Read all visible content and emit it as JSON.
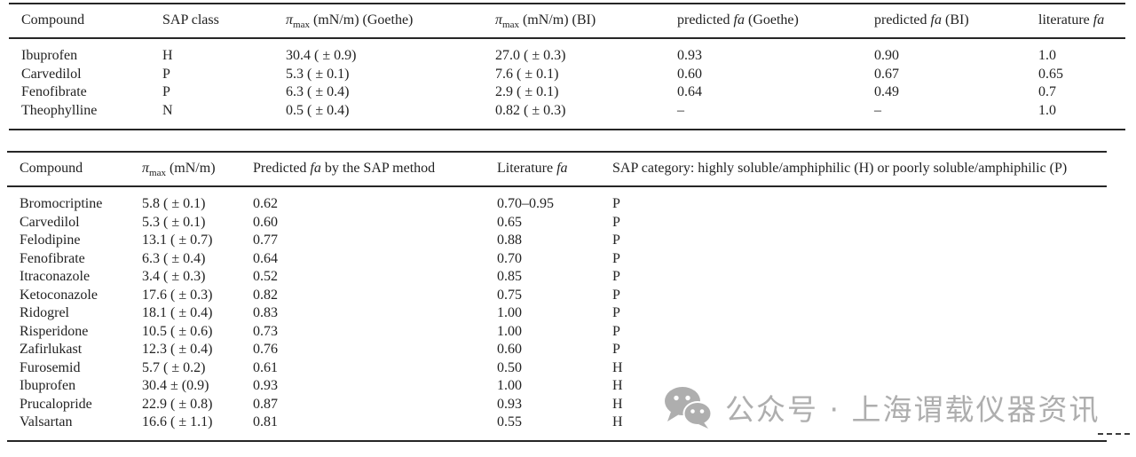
{
  "page": {
    "background": "#ffffff",
    "text_color": "#222222",
    "rule_color": "#262626"
  },
  "table1": {
    "headers": [
      {
        "pre": "Compound"
      },
      {
        "pre": "SAP class"
      },
      {
        "pi": "π",
        "sub": "max",
        "post": " (mN/m) (Goethe)"
      },
      {
        "pi": "π",
        "sub": "max",
        "post": " (mN/m) (BI)"
      },
      {
        "pre": "predicted ",
        "it": "fa",
        "post": " (Goethe)"
      },
      {
        "pre": "predicted ",
        "it": "fa",
        "post": " (BI)"
      },
      {
        "pre": "literature ",
        "it": "fa"
      }
    ],
    "rows": [
      [
        "Ibuprofen",
        "H",
        "30.4 ( ± 0.9)",
        "27.0 ( ± 0.3)",
        "0.93",
        "0.90",
        "1.0"
      ],
      [
        "Carvedilol",
        "P",
        "5.3 ( ± 0.1)",
        "7.6 ( ± 0.1)",
        "0.60",
        "0.67",
        "0.65"
      ],
      [
        "Fenofibrate",
        "P",
        "6.3 ( ± 0.4)",
        "2.9 ( ± 0.1)",
        "0.64",
        "0.49",
        "0.7"
      ],
      [
        "Theophylline",
        "N",
        "0.5 ( ± 0.4)",
        "0.82 ( ± 0.3)",
        "–",
        "–",
        "1.0"
      ]
    ]
  },
  "table2": {
    "headers": [
      {
        "pre": "Compound"
      },
      {
        "pi": "π",
        "sub": "max",
        "post": " (mN/m)"
      },
      {
        "pre": "Predicted ",
        "it": "fa",
        "post": " by the SAP method"
      },
      {
        "pre": "Literature ",
        "it": "fa"
      },
      {
        "pre": "SAP category: highly soluble/amphiphilic (H) or poorly soluble/amphiphilic (P)"
      }
    ],
    "rows": [
      [
        "Bromocriptine",
        "5.8 ( ± 0.1)",
        "0.62",
        "0.70–0.95",
        "P"
      ],
      [
        "Carvedilol",
        "5.3 ( ± 0.1)",
        "0.60",
        "0.65",
        "P"
      ],
      [
        "Felodipine",
        "13.1 ( ± 0.7)",
        "0.77",
        "0.88",
        "P"
      ],
      [
        "Fenofibrate",
        "6.3 ( ± 0.4)",
        "0.64",
        "0.70",
        "P"
      ],
      [
        "Itraconazole",
        "3.4 ( ± 0.3)",
        "0.52",
        "0.85",
        "P"
      ],
      [
        "Ketoconazole",
        "17.6 ( ± 0.3)",
        "0.82",
        "0.75",
        "P"
      ],
      [
        "Ridogrel",
        "18.1 ( ± 0.4)",
        "0.83",
        "1.00",
        "P"
      ],
      [
        "Risperidone",
        "10.5 ( ± 0.6)",
        "0.73",
        "1.00",
        "P"
      ],
      [
        "Zafirlukast",
        "12.3 ( ± 0.4)",
        "0.76",
        "0.60",
        "P"
      ],
      [
        "Furosemid",
        "5.7 ( ± 0.2)",
        "0.61",
        "0.50",
        "H"
      ],
      [
        "Ibuprofen",
        "30.4 ± (0.9)",
        "0.93",
        "1.00",
        "H"
      ],
      [
        "Prucalopride",
        "22.9 ( ± 0.8)",
        "0.87",
        "0.93",
        "H"
      ],
      [
        "Valsartan",
        "16.6 ( ± 1.1)",
        "0.81",
        "0.55",
        "H"
      ]
    ]
  },
  "watermark": {
    "icon": "wechat-icon",
    "text": "公众号 · 上海谓载仪器资讯",
    "color": "#aeaeae"
  }
}
